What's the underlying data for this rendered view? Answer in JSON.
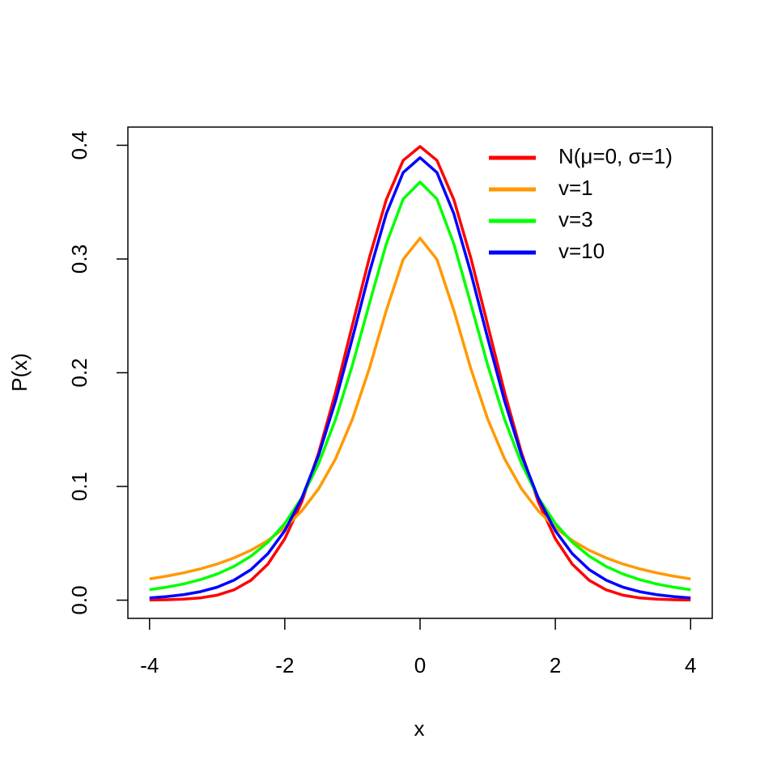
{
  "chart_data": {
    "type": "line",
    "xlabel": "x",
    "ylabel": "P(x)",
    "x": [
      -4,
      -3.75,
      -3.5,
      -3.25,
      -3,
      -2.75,
      -2.5,
      -2.25,
      -2,
      -1.75,
      -1.5,
      -1.25,
      -1,
      -0.75,
      -0.5,
      -0.25,
      0,
      0.25,
      0.5,
      0.75,
      1,
      1.25,
      1.5,
      1.75,
      2,
      2.25,
      2.5,
      2.75,
      3,
      3.25,
      3.5,
      3.75,
      4
    ],
    "series": [
      {
        "name": "N(μ=0, σ=1)",
        "color": "#ff0000",
        "values": [
          0.0001,
          0.0004,
          0.0009,
          0.002,
          0.0044,
          0.0091,
          0.0175,
          0.0317,
          0.054,
          0.0863,
          0.1295,
          0.1826,
          0.242,
          0.3011,
          0.3521,
          0.3867,
          0.3989,
          0.3867,
          0.3521,
          0.3011,
          0.242,
          0.1826,
          0.1295,
          0.0863,
          0.054,
          0.0317,
          0.0175,
          0.0091,
          0.0044,
          0.002,
          0.0009,
          0.0004,
          0.0001
        ]
      },
      {
        "name": "v=1",
        "color": "#ff9900",
        "values": [
          0.0187,
          0.0211,
          0.024,
          0.0275,
          0.0318,
          0.0372,
          0.0439,
          0.0525,
          0.0637,
          0.0784,
          0.0979,
          0.1242,
          0.1592,
          0.2037,
          0.2546,
          0.2996,
          0.3183,
          0.2996,
          0.2546,
          0.2037,
          0.1592,
          0.1242,
          0.0979,
          0.0784,
          0.0637,
          0.0525,
          0.0439,
          0.0372,
          0.0318,
          0.0275,
          0.024,
          0.0211,
          0.0187
        ]
      },
      {
        "name": "v=3",
        "color": "#00ff00",
        "values": [
          0.0092,
          0.0114,
          0.0142,
          0.018,
          0.023,
          0.0297,
          0.0387,
          0.0509,
          0.0675,
          0.09,
          0.12,
          0.1589,
          0.2067,
          0.2606,
          0.3132,
          0.3527,
          0.3676,
          0.3527,
          0.3132,
          0.2606,
          0.2067,
          0.1589,
          0.12,
          0.09,
          0.0675,
          0.0509,
          0.0387,
          0.0297,
          0.023,
          0.018,
          0.0142,
          0.0114,
          0.0092
        ]
      },
      {
        "name": "v=10",
        "color": "#0000ff",
        "values": [
          0.002,
          0.0031,
          0.0048,
          0.0074,
          0.0114,
          0.0176,
          0.0269,
          0.0409,
          0.0611,
          0.0895,
          0.1274,
          0.1751,
          0.2304,
          0.288,
          0.3397,
          0.376,
          0.3891,
          0.376,
          0.3397,
          0.288,
          0.2304,
          0.1751,
          0.1274,
          0.0895,
          0.0611,
          0.0409,
          0.0269,
          0.0176,
          0.0114,
          0.0074,
          0.0048,
          0.0031,
          0.002
        ]
      }
    ],
    "xlim": [
      -4.32,
      4.32
    ],
    "xticks": [
      -4,
      -2,
      0,
      2,
      4
    ],
    "ylim": [
      -0.016,
      0.416
    ],
    "yticks": [
      {
        "value": 0,
        "label": "0.0"
      },
      0.1,
      0.2,
      0.3,
      0.4
    ],
    "grid": false,
    "legend": "top-right"
  }
}
